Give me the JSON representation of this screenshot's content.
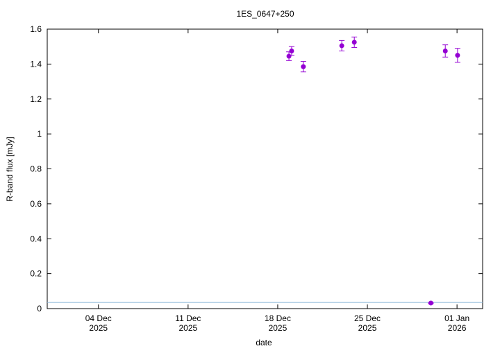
{
  "chart_data": {
    "type": "scatter",
    "title": "1ES_0647+250",
    "x_label": "date",
    "y_label": "R-band flux [mJy]",
    "x": [
      "2025-12-18T21:00",
      "2025-12-19T02:00",
      "2025-12-20T00:00",
      "2025-12-23T00:00",
      "2025-12-23T23:30",
      "2025-12-29T23:00",
      "2025-12-31T02:00",
      "2026-01-01T01:00"
    ],
    "series": [
      {
        "color": "#9400d3",
        "values": [
          1.445,
          1.475,
          1.385,
          1.505,
          1.525,
          0.032,
          1.475,
          1.45
        ],
        "errors": [
          0.025,
          0.025,
          0.03,
          0.03,
          0.03,
          0.003,
          0.035,
          0.04
        ]
      }
    ],
    "reference_line": {
      "value": 0.035,
      "color": "#87b5d6"
    },
    "xlim": [
      "2025-11-30",
      "2026-01-03"
    ],
    "xticks": [
      {
        "value": "2025-12-04",
        "label": "04 Dec 2025"
      },
      {
        "value": "2025-12-11",
        "label": "11 Dec 2025"
      },
      {
        "value": "2025-12-18",
        "label": "18 Dec 2025"
      },
      {
        "value": "2025-12-25",
        "label": "25 Dec 2025"
      },
      {
        "value": "2026-01-01",
        "label": "01 Jan 2026"
      }
    ],
    "ylim": [
      0,
      1.6
    ],
    "yticks": [
      0,
      0.2,
      0.4,
      0.6,
      0.8,
      1,
      1.2,
      1.4,
      1.6
    ]
  }
}
